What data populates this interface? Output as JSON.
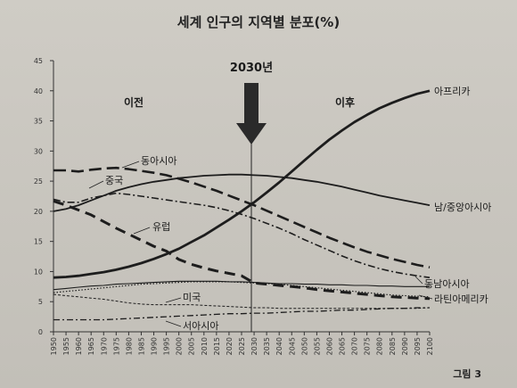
{
  "chart_data": {
    "type": "line",
    "title": "세계 인구의 지역별 분포(%)",
    "x": [
      1950,
      1955,
      1960,
      1965,
      1970,
      1975,
      1980,
      1985,
      1990,
      1995,
      2000,
      2005,
      2010,
      2015,
      2020,
      2025,
      2030,
      2035,
      2040,
      2045,
      2050,
      2055,
      2060,
      2065,
      2070,
      2075,
      2080,
      2085,
      2090,
      2095,
      2100
    ],
    "x_tick_labels": [
      "1950",
      "1955",
      "1960",
      "1965",
      "1970",
      "1975",
      "1980",
      "1985",
      "1990",
      "1995",
      "2000",
      "2005",
      "2010",
      "2015",
      "2020",
      "2025",
      "2030",
      "2035",
      "2040",
      "2045",
      "2050",
      "2055",
      "2060",
      "2065",
      "2070",
      "2075",
      "2080",
      "2085",
      "2090",
      "2095",
      "2100"
    ],
    "ylim": [
      0,
      45
    ],
    "y_ticks": [
      0,
      5,
      10,
      15,
      20,
      25,
      30,
      35,
      40,
      45
    ],
    "grid": false,
    "marker_year": 2030,
    "marker_label": "2030년",
    "before_label": "이전",
    "after_label": "이후",
    "figure_label": "그림 3",
    "series": [
      {
        "name": "아프리카",
        "style": "solid-thick",
        "values": [
          9.0,
          9.1,
          9.3,
          9.6,
          9.9,
          10.3,
          10.8,
          11.4,
          12.1,
          12.9,
          13.8,
          14.9,
          16.0,
          17.3,
          18.6,
          20.0,
          21.5,
          23.1,
          24.8,
          26.6,
          28.4,
          30.2,
          31.9,
          33.4,
          34.8,
          36.0,
          37.1,
          38.0,
          38.8,
          39.5,
          40.0
        ]
      },
      {
        "name": "남/중앙아시아",
        "style": "solid",
        "values": [
          20.0,
          20.4,
          21.0,
          21.8,
          22.6,
          23.4,
          24.0,
          24.5,
          24.9,
          25.2,
          25.5,
          25.7,
          25.9,
          26.0,
          26.1,
          26.1,
          26.0,
          25.9,
          25.7,
          25.5,
          25.2,
          24.9,
          24.5,
          24.1,
          23.6,
          23.1,
          22.6,
          22.2,
          21.8,
          21.4,
          21.0
        ]
      },
      {
        "name": "동아시아",
        "style": "long-dash",
        "values": [
          26.8,
          26.8,
          26.6,
          26.9,
          27.1,
          27.2,
          27.0,
          26.7,
          26.4,
          26.0,
          25.4,
          24.8,
          24.1,
          23.4,
          22.6,
          21.8,
          21.0,
          20.1,
          19.2,
          18.3,
          17.4,
          16.5,
          15.6,
          14.8,
          14.0,
          13.3,
          12.7,
          12.1,
          11.6,
          11.1,
          10.7
        ]
      },
      {
        "name": "중국",
        "style": "dash-dot",
        "values": [
          22.0,
          21.5,
          21.5,
          22.2,
          22.6,
          23.0,
          22.8,
          22.5,
          22.2,
          21.9,
          21.6,
          21.3,
          21.0,
          20.6,
          20.1,
          19.5,
          18.8,
          18.0,
          17.2,
          16.3,
          15.3,
          14.4,
          13.5,
          12.6,
          11.8,
          11.1,
          10.5,
          10.0,
          9.6,
          9.3,
          9.0
        ]
      },
      {
        "name": "유럽",
        "style": "dash-thick",
        "values": [
          21.7,
          21.0,
          20.2,
          19.4,
          18.3,
          17.2,
          16.2,
          15.2,
          14.2,
          13.4,
          12.0,
          11.2,
          10.6,
          10.1,
          9.7,
          9.3,
          8.1,
          7.9,
          7.7,
          7.5,
          7.3,
          7.0,
          6.8,
          6.6,
          6.4,
          6.2,
          6.0,
          5.8,
          5.7,
          5.6,
          5.5
        ]
      },
      {
        "name": "동남아시아",
        "style": "solid-thin",
        "values": [
          7.0,
          7.2,
          7.4,
          7.6,
          7.7,
          7.9,
          8.0,
          8.1,
          8.2,
          8.3,
          8.4,
          8.4,
          8.4,
          8.4,
          8.3,
          8.3,
          8.2,
          8.1,
          8.0,
          8.0,
          7.9,
          7.9,
          7.8,
          7.8,
          7.7,
          7.7,
          7.6,
          7.6,
          7.5,
          7.5,
          7.5
        ]
      },
      {
        "name": "라틴아메리카",
        "style": "dotted",
        "values": [
          6.5,
          6.7,
          6.9,
          7.1,
          7.3,
          7.5,
          7.7,
          7.9,
          8.0,
          8.1,
          8.2,
          8.3,
          8.3,
          8.3,
          8.3,
          8.2,
          8.1,
          8.0,
          7.9,
          7.7,
          7.5,
          7.3,
          7.1,
          6.9,
          6.7,
          6.5,
          6.3,
          6.1,
          6.0,
          5.9,
          5.8
        ]
      },
      {
        "name": "미국",
        "style": "short-dash",
        "values": [
          6.2,
          6.0,
          5.8,
          5.6,
          5.4,
          5.1,
          4.8,
          4.6,
          4.5,
          4.5,
          4.5,
          4.5,
          4.4,
          4.3,
          4.2,
          4.1,
          4.0,
          4.0,
          3.9,
          3.9,
          3.9,
          3.9,
          3.9,
          3.9,
          3.9,
          3.9,
          3.9,
          3.9,
          3.9,
          3.9,
          4.0
        ]
      },
      {
        "name": "서아시아",
        "style": "dash-dot-thin",
        "values": [
          2.0,
          2.0,
          2.0,
          2.0,
          2.0,
          2.1,
          2.2,
          2.3,
          2.4,
          2.5,
          2.6,
          2.7,
          2.8,
          2.9,
          3.0,
          3.0,
          3.1,
          3.1,
          3.2,
          3.3,
          3.4,
          3.4,
          3.5,
          3.6,
          3.6,
          3.7,
          3.8,
          3.9,
          3.9,
          4.0,
          4.0
        ]
      }
    ]
  }
}
